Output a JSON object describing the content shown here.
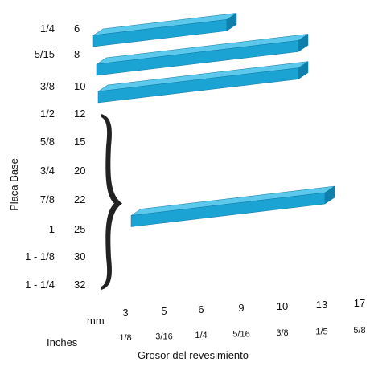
{
  "chart_data": {
    "type": "bar",
    "orientation": "horizontal-3d",
    "title": "",
    "ylabel": "Placa Base",
    "xlabel": "Grosor del revesimiento",
    "y_categories": [
      {
        "inch": "1/4",
        "mm": "6"
      },
      {
        "inch": "5/15",
        "mm": "8"
      },
      {
        "inch": "3/8",
        "mm": "10"
      },
      {
        "inch": "1/2",
        "mm": "12"
      },
      {
        "inch": "5/8",
        "mm": "15"
      },
      {
        "inch": "3/4",
        "mm": "20"
      },
      {
        "inch": "7/8",
        "mm": "22"
      },
      {
        "inch": "1",
        "mm": "25"
      },
      {
        "inch": "1 - 1/8",
        "mm": "30"
      },
      {
        "inch": "1 - 1/4",
        "mm": "32"
      }
    ],
    "x_axis": {
      "mm_label": "mm",
      "inches_label": "Inches",
      "ticks": [
        {
          "mm": "3",
          "inch": "1/8"
        },
        {
          "mm": "5",
          "inch": "3/16"
        },
        {
          "mm": "6",
          "inch": "1/4"
        },
        {
          "mm": "9",
          "inch": "5/16"
        },
        {
          "mm": "10",
          "inch": "3/8"
        },
        {
          "mm": "13",
          "inch": "1/5"
        },
        {
          "mm": "17",
          "inch": "5/8"
        }
      ]
    },
    "bars": [
      {
        "base_plate_mm": 6,
        "coating_mm": 9
      },
      {
        "base_plate_mm": 8,
        "coating_mm": 10
      },
      {
        "base_plate_mm": 10,
        "coating_mm": 10
      },
      {
        "base_plate_mm_range": [
          12,
          32
        ],
        "coating_mm": 13
      }
    ],
    "bracket_range_mm": [
      12,
      32
    ],
    "colors": {
      "bar_front": "#1ba3d4",
      "bar_top": "#5cc8ec",
      "bar_end": "#0f7fab",
      "bracket": "#222222"
    }
  }
}
